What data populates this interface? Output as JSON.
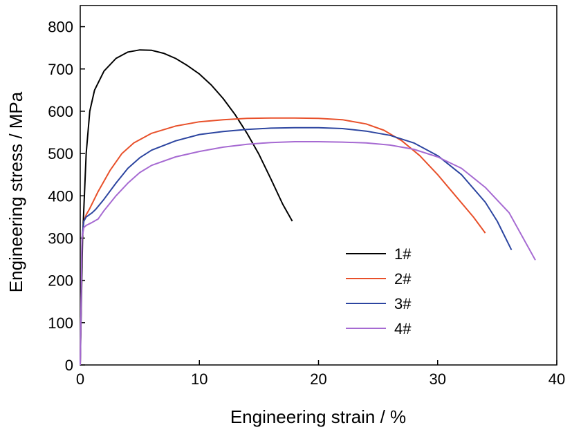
{
  "chart_data": {
    "type": "line",
    "xlabel": "Engineering strain / %",
    "ylabel": "Engineering stress / MPa",
    "xlim": [
      0,
      40
    ],
    "ylim": [
      0,
      850
    ],
    "xticks": [
      0,
      10,
      20,
      30,
      40
    ],
    "yticks": [
      0,
      100,
      200,
      300,
      400,
      500,
      600,
      700,
      800
    ],
    "grid": false,
    "legend_position": "center-right",
    "series": [
      {
        "name": "1#",
        "color": "#000000",
        "points": [
          [
            0,
            0
          ],
          [
            0.2,
            300
          ],
          [
            0.5,
            500
          ],
          [
            0.8,
            600
          ],
          [
            1.2,
            650
          ],
          [
            2,
            695
          ],
          [
            3,
            725
          ],
          [
            4,
            740
          ],
          [
            5,
            745
          ],
          [
            6,
            744
          ],
          [
            7,
            737
          ],
          [
            8,
            725
          ],
          [
            9,
            708
          ],
          [
            10,
            688
          ],
          [
            11,
            662
          ],
          [
            12,
            630
          ],
          [
            13,
            592
          ],
          [
            14,
            548
          ],
          [
            15,
            498
          ],
          [
            16,
            440
          ],
          [
            17,
            380
          ],
          [
            17.8,
            340
          ]
        ]
      },
      {
        "name": "2#",
        "color": "#e8502a",
        "points": [
          [
            0,
            0
          ],
          [
            0.15,
            300
          ],
          [
            0.3,
            340
          ],
          [
            0.5,
            355
          ],
          [
            0.8,
            370
          ],
          [
            1.5,
            410
          ],
          [
            2.5,
            460
          ],
          [
            3.5,
            500
          ],
          [
            4.5,
            525
          ],
          [
            6,
            548
          ],
          [
            8,
            565
          ],
          [
            10,
            575
          ],
          [
            12,
            580
          ],
          [
            14,
            583
          ],
          [
            16,
            584
          ],
          [
            18,
            584
          ],
          [
            20,
            583
          ],
          [
            22,
            580
          ],
          [
            24,
            570
          ],
          [
            25.5,
            555
          ],
          [
            27,
            530
          ],
          [
            28.5,
            495
          ],
          [
            30,
            450
          ],
          [
            31.5,
            400
          ],
          [
            33,
            350
          ],
          [
            34,
            312
          ]
        ]
      },
      {
        "name": "3#",
        "color": "#2c45a0",
        "points": [
          [
            0,
            0
          ],
          [
            0.15,
            300
          ],
          [
            0.3,
            340
          ],
          [
            0.5,
            350
          ],
          [
            1,
            360
          ],
          [
            1.3,
            368
          ],
          [
            2,
            392
          ],
          [
            3,
            430
          ],
          [
            4,
            465
          ],
          [
            5,
            490
          ],
          [
            6,
            508
          ],
          [
            8,
            530
          ],
          [
            10,
            545
          ],
          [
            12,
            552
          ],
          [
            14,
            557
          ],
          [
            16,
            560
          ],
          [
            18,
            561
          ],
          [
            20,
            561
          ],
          [
            22,
            559
          ],
          [
            24,
            553
          ],
          [
            26,
            543
          ],
          [
            28,
            525
          ],
          [
            30,
            495
          ],
          [
            32,
            450
          ],
          [
            34,
            385
          ],
          [
            35,
            340
          ],
          [
            36.2,
            272
          ]
        ]
      },
      {
        "name": "4#",
        "color": "#a66ad2",
        "points": [
          [
            0,
            0
          ],
          [
            0.15,
            300
          ],
          [
            0.3,
            325
          ],
          [
            0.5,
            330
          ],
          [
            1,
            337
          ],
          [
            1.5,
            345
          ],
          [
            2,
            365
          ],
          [
            3,
            400
          ],
          [
            4,
            430
          ],
          [
            5,
            455
          ],
          [
            6,
            472
          ],
          [
            8,
            492
          ],
          [
            10,
            505
          ],
          [
            12,
            515
          ],
          [
            14,
            522
          ],
          [
            16,
            526
          ],
          [
            18,
            528
          ],
          [
            20,
            528
          ],
          [
            22,
            527
          ],
          [
            24,
            525
          ],
          [
            26,
            520
          ],
          [
            28,
            510
          ],
          [
            30,
            492
          ],
          [
            32,
            465
          ],
          [
            34,
            420
          ],
          [
            36,
            360
          ],
          [
            38.2,
            248
          ]
        ]
      }
    ]
  }
}
